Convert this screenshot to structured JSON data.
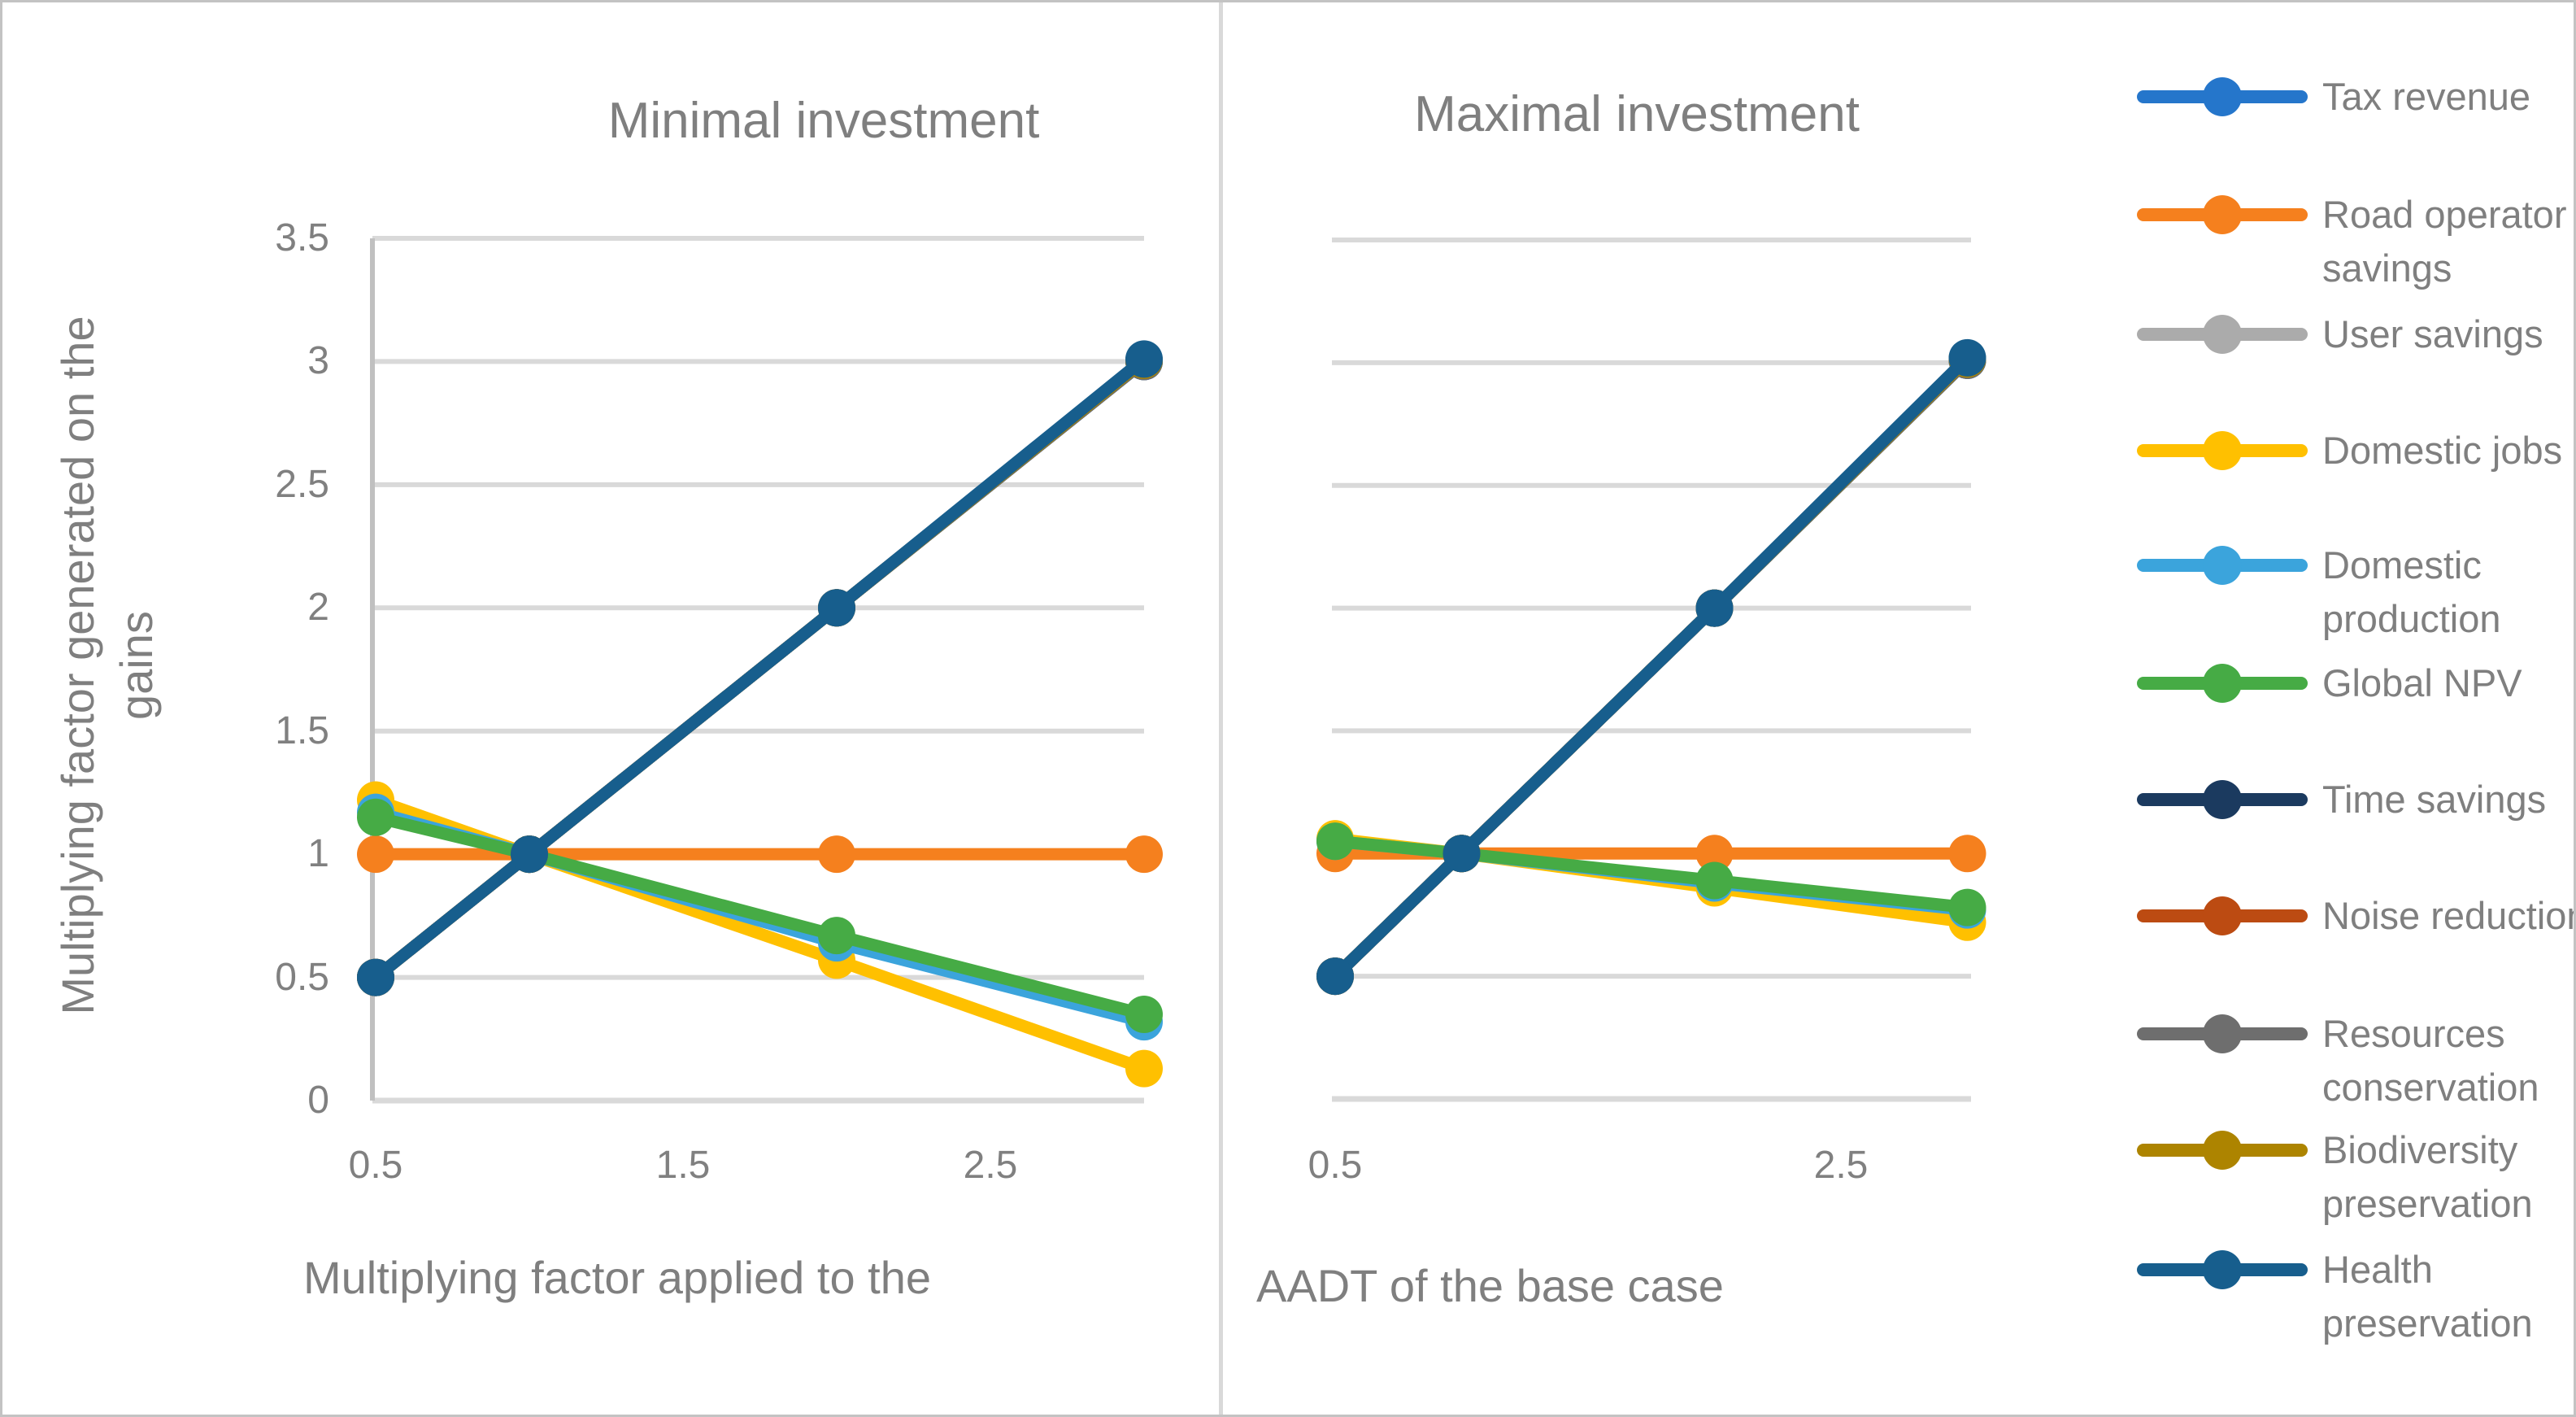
{
  "figure": {
    "y_axis_title": "Multiplying factor generated on the gains",
    "y_axis_title_line1": "Multiplying factor generated on the",
    "y_axis_title_line2": "gains",
    "x_axis_title_full": "Multiplying factor applied to the AADT of the base case",
    "colors": {
      "grid": "#d9d9d9",
      "axis": "#c0c0c0",
      "text": "#7f7f7f",
      "background": "#ffffff"
    }
  },
  "legend": {
    "position": "right",
    "items": [
      {
        "label": "Tax revenue",
        "color": "#2576CB"
      },
      {
        "label": "Road operator savings",
        "color": "#F5801E"
      },
      {
        "label": "User savings",
        "color": "#ABABAB"
      },
      {
        "label": "Domestic jobs",
        "color": "#FFC000"
      },
      {
        "label": "Domestic production",
        "color": "#3BA4DC"
      },
      {
        "label": "Global NPV",
        "color": "#46AB45"
      },
      {
        "label": "Time savings",
        "color": "#1B3A5F"
      },
      {
        "label": "Noise reduction",
        "color": "#BC4B12"
      },
      {
        "label": "Resources conservation",
        "color": "#6E6E6E"
      },
      {
        "label": "Biodiversity preservation",
        "color": "#AD8400"
      },
      {
        "label": "Health preservation",
        "color": "#175E8D"
      }
    ]
  },
  "chart_data": [
    {
      "type": "line",
      "title": "Minimal investment",
      "xlabel": "Multiplying factor applied to the",
      "ylabel": "Multiplying factor generated on the gains",
      "x": [
        0.5,
        1,
        2,
        3
      ],
      "xlim": [
        0.5,
        3
      ],
      "ylim": [
        0,
        3.5
      ],
      "grid": true,
      "xticks": [
        "0.5",
        "1.5",
        "2.5"
      ],
      "yticks": [
        "3.5",
        "3",
        "2.5",
        "2",
        "1.5",
        "1",
        "0.5",
        "0"
      ],
      "series": [
        {
          "name": "Tax revenue",
          "color": "#2576CB",
          "values": [
            0.5,
            1,
            2,
            3
          ]
        },
        {
          "name": "Road operator savings",
          "color": "#F5801E",
          "values": [
            1,
            1,
            1,
            1
          ]
        },
        {
          "name": "User savings",
          "color": "#ABABAB",
          "values": [
            0.5,
            1,
            2,
            3
          ]
        },
        {
          "name": "Domestic jobs",
          "color": "#FFC000",
          "values": [
            1.22,
            1,
            0.57,
            0.13
          ]
        },
        {
          "name": "Domestic production",
          "color": "#3BA4DC",
          "values": [
            1.17,
            1,
            0.64,
            0.32
          ]
        },
        {
          "name": "Global NPV",
          "color": "#46AB45",
          "values": [
            1.15,
            1,
            0.67,
            0.35
          ]
        },
        {
          "name": "Time savings",
          "color": "#1B3A5F",
          "values": [
            0.5,
            1,
            2,
            3
          ]
        },
        {
          "name": "Noise reduction",
          "color": "#BC4B12",
          "values": [
            0.5,
            1,
            2,
            3.005
          ]
        },
        {
          "name": "Resources conservation",
          "color": "#6E6E6E",
          "values": [
            0.5,
            1,
            2,
            3
          ]
        },
        {
          "name": "Biodiversity preservation",
          "color": "#AD8400",
          "values": [
            0.5,
            1,
            2,
            3.005
          ]
        },
        {
          "name": "Health preservation",
          "color": "#175E8D",
          "values": [
            0.5,
            1,
            2,
            3.01
          ]
        }
      ]
    },
    {
      "type": "line",
      "title": "Maximal investment",
      "xlabel": "AADT of the base case",
      "ylabel": "Multiplying factor generated on the gains",
      "x": [
        0.5,
        1,
        2,
        3
      ],
      "xlim": [
        0.5,
        3
      ],
      "ylim": [
        0,
        3.5
      ],
      "grid": true,
      "xticks": [
        "0.5",
        "2.5"
      ],
      "yticks": [],
      "series": [
        {
          "name": "Tax revenue",
          "color": "#2576CB",
          "values": [
            0.5,
            1,
            2,
            3.01
          ]
        },
        {
          "name": "Road operator savings",
          "color": "#F5801E",
          "values": [
            1,
            1,
            1,
            1
          ]
        },
        {
          "name": "User savings",
          "color": "#ABABAB",
          "values": [
            0.5,
            1,
            2,
            3.01
          ]
        },
        {
          "name": "Domestic jobs",
          "color": "#FFC000",
          "values": [
            1.06,
            1,
            0.86,
            0.72
          ]
        },
        {
          "name": "Domestic production",
          "color": "#3BA4DC",
          "values": [
            1.05,
            1,
            0.88,
            0.77
          ]
        },
        {
          "name": "Global NPV",
          "color": "#46AB45",
          "values": [
            1.05,
            1,
            0.89,
            0.78
          ]
        },
        {
          "name": "Time savings",
          "color": "#1B3A5F",
          "values": [
            0.5,
            1,
            2,
            3.01
          ]
        },
        {
          "name": "Noise reduction",
          "color": "#BC4B12",
          "values": [
            0.5,
            1,
            2,
            3.015
          ]
        },
        {
          "name": "Resources conservation",
          "color": "#6E6E6E",
          "values": [
            0.5,
            1,
            2,
            3.01
          ]
        },
        {
          "name": "Biodiversity preservation",
          "color": "#AD8400",
          "values": [
            0.5,
            1,
            2,
            3.015
          ]
        },
        {
          "name": "Health preservation",
          "color": "#175E8D",
          "values": [
            0.5,
            1,
            2,
            3.02
          ]
        }
      ]
    }
  ]
}
